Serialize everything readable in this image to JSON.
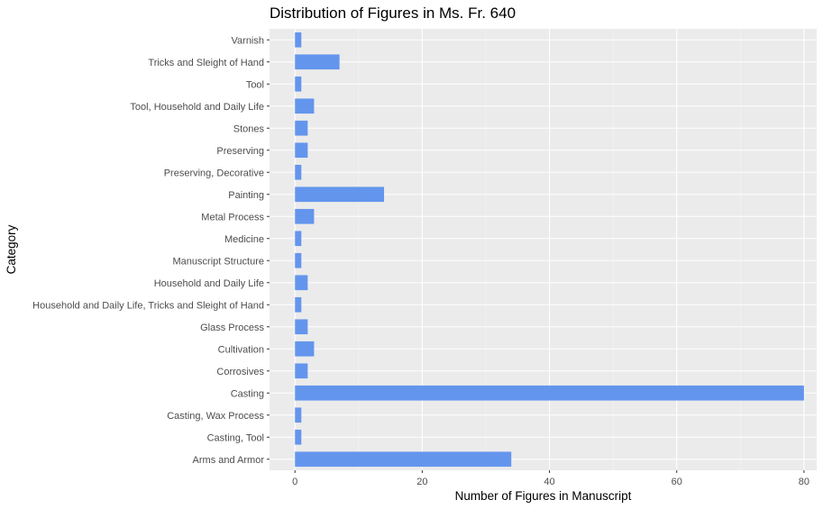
{
  "chart_data": {
    "type": "bar",
    "orientation": "horizontal",
    "title": "Distribution of Figures in Ms. Fr. 640",
    "xlabel": "Number of Figures in Manuscript",
    "ylabel": "Category",
    "xlim": [
      -4,
      82
    ],
    "xticks": [
      0,
      20,
      40,
      60,
      80
    ],
    "grid": true,
    "legend": "none",
    "colors": {
      "bar": "#6495ED",
      "panel": "#EBEBEB",
      "grid_major": "#FFFFFF",
      "grid_minor": "#F5F5F5",
      "tick_text": "#4D4D4D"
    },
    "categories": [
      "Arms and Armor",
      "Casting, Tool",
      "Casting, Wax Process",
      "Casting",
      "Corrosives",
      "Cultivation",
      "Glass Process",
      "Household and Daily Life, Tricks and Sleight of Hand",
      "Household and Daily Life",
      "Manuscript Structure",
      "Medicine",
      "Metal Process",
      "Painting",
      "Preserving, Decorative",
      "Preserving",
      "Stones",
      "Tool, Household and Daily Life",
      "Tool",
      "Tricks and Sleight of Hand",
      "Varnish"
    ],
    "values": [
      34,
      1,
      1,
      80,
      2,
      3,
      2,
      1,
      2,
      1,
      1,
      3,
      14,
      1,
      2,
      2,
      3,
      1,
      7,
      1
    ]
  }
}
